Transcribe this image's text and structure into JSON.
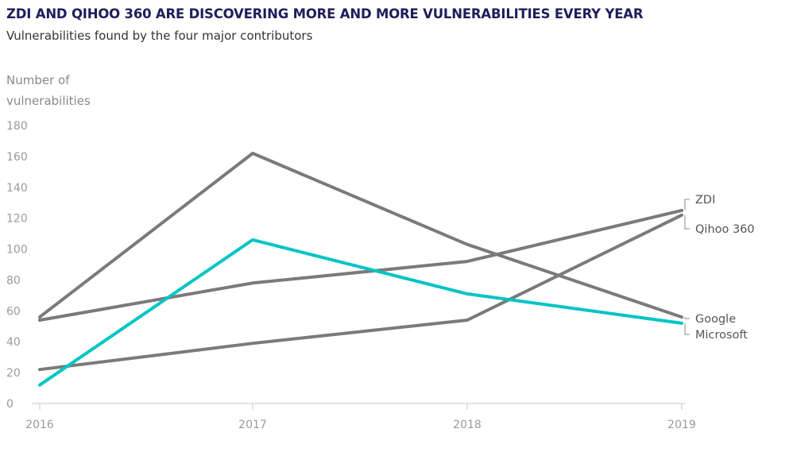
{
  "header": {
    "title": "ZDI AND QIHOO 360 ARE DISCOVERING MORE AND MORE VULNERABILITIES EVERY YEAR",
    "subtitle": "Vulnerabilities found by the four major contributors"
  },
  "chart_data": {
    "type": "line",
    "ylabel_lines": [
      "Number of",
      "vulnerabilities"
    ],
    "xlabel": "",
    "categories": [
      "2016",
      "2017",
      "2018",
      "2019"
    ],
    "ylim": [
      0,
      180
    ],
    "yticks": [
      0,
      20,
      40,
      60,
      80,
      100,
      120,
      140,
      160,
      180
    ],
    "grid": false,
    "series": [
      {
        "name": "Google",
        "values": [
          56,
          162,
          103,
          56
        ],
        "color": "#7a7a7a"
      },
      {
        "name": "ZDI",
        "values": [
          54,
          78,
          92,
          125
        ],
        "color": "#7a7a7a"
      },
      {
        "name": "Qihoo 360",
        "values": [
          22,
          39,
          54,
          122
        ],
        "color": "#7a7a7a"
      },
      {
        "name": "Microsoft",
        "values": [
          12,
          106,
          71,
          52
        ],
        "color": "#00c4c4"
      }
    ],
    "legend_labels": [
      {
        "name": "ZDI",
        "series": "ZDI"
      },
      {
        "name": "Qihoo 360",
        "series": "Qihoo 360"
      },
      {
        "name": "Google",
        "series": "Google"
      },
      {
        "name": "Microsoft",
        "series": "Microsoft"
      }
    ]
  }
}
